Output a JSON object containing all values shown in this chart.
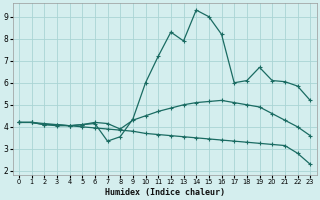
{
  "xlabel": "Humidex (Indice chaleur)",
  "xlim": [
    -0.5,
    23.5
  ],
  "ylim": [
    1.8,
    9.6
  ],
  "xticks": [
    0,
    1,
    2,
    3,
    4,
    5,
    6,
    7,
    8,
    9,
    10,
    11,
    12,
    13,
    14,
    15,
    16,
    17,
    18,
    19,
    20,
    21,
    22,
    23
  ],
  "yticks": [
    2,
    3,
    4,
    5,
    6,
    7,
    8,
    9
  ],
  "bg_color": "#d4eeee",
  "line_color": "#1a6b62",
  "grid_color": "#aad4d4",
  "line1": {
    "x": [
      0,
      1,
      2,
      3,
      4,
      5,
      6,
      7,
      8,
      9,
      10,
      11,
      12,
      13,
      14,
      15,
      16,
      17,
      18,
      19,
      20,
      21,
      22,
      23
    ],
    "y": [
      4.2,
      4.2,
      4.1,
      4.05,
      4.05,
      4.1,
      4.15,
      3.35,
      3.55,
      4.35,
      6.0,
      7.2,
      8.3,
      7.9,
      9.3,
      9.0,
      8.2,
      6.0,
      6.1,
      6.7,
      6.1,
      6.05,
      5.85,
      5.2
    ]
  },
  "line2": {
    "x": [
      0,
      1,
      2,
      3,
      4,
      5,
      6,
      7,
      8,
      9,
      10,
      11,
      12,
      13,
      14,
      15,
      16,
      17,
      18,
      19,
      20,
      21,
      22,
      23
    ],
    "y": [
      4.2,
      4.2,
      4.1,
      4.1,
      4.05,
      4.1,
      4.2,
      4.15,
      3.9,
      4.3,
      4.5,
      4.7,
      4.85,
      5.0,
      5.1,
      5.15,
      5.2,
      5.1,
      5.0,
      4.9,
      4.6,
      4.3,
      4.0,
      3.6
    ]
  },
  "line3": {
    "x": [
      0,
      1,
      2,
      3,
      4,
      5,
      6,
      7,
      8,
      9,
      10,
      11,
      12,
      13,
      14,
      15,
      16,
      17,
      18,
      19,
      20,
      21,
      22,
      23
    ],
    "y": [
      4.2,
      4.2,
      4.15,
      4.1,
      4.05,
      4.0,
      3.95,
      3.9,
      3.85,
      3.8,
      3.7,
      3.65,
      3.6,
      3.55,
      3.5,
      3.45,
      3.4,
      3.35,
      3.3,
      3.25,
      3.2,
      3.15,
      2.8,
      2.3
    ]
  }
}
